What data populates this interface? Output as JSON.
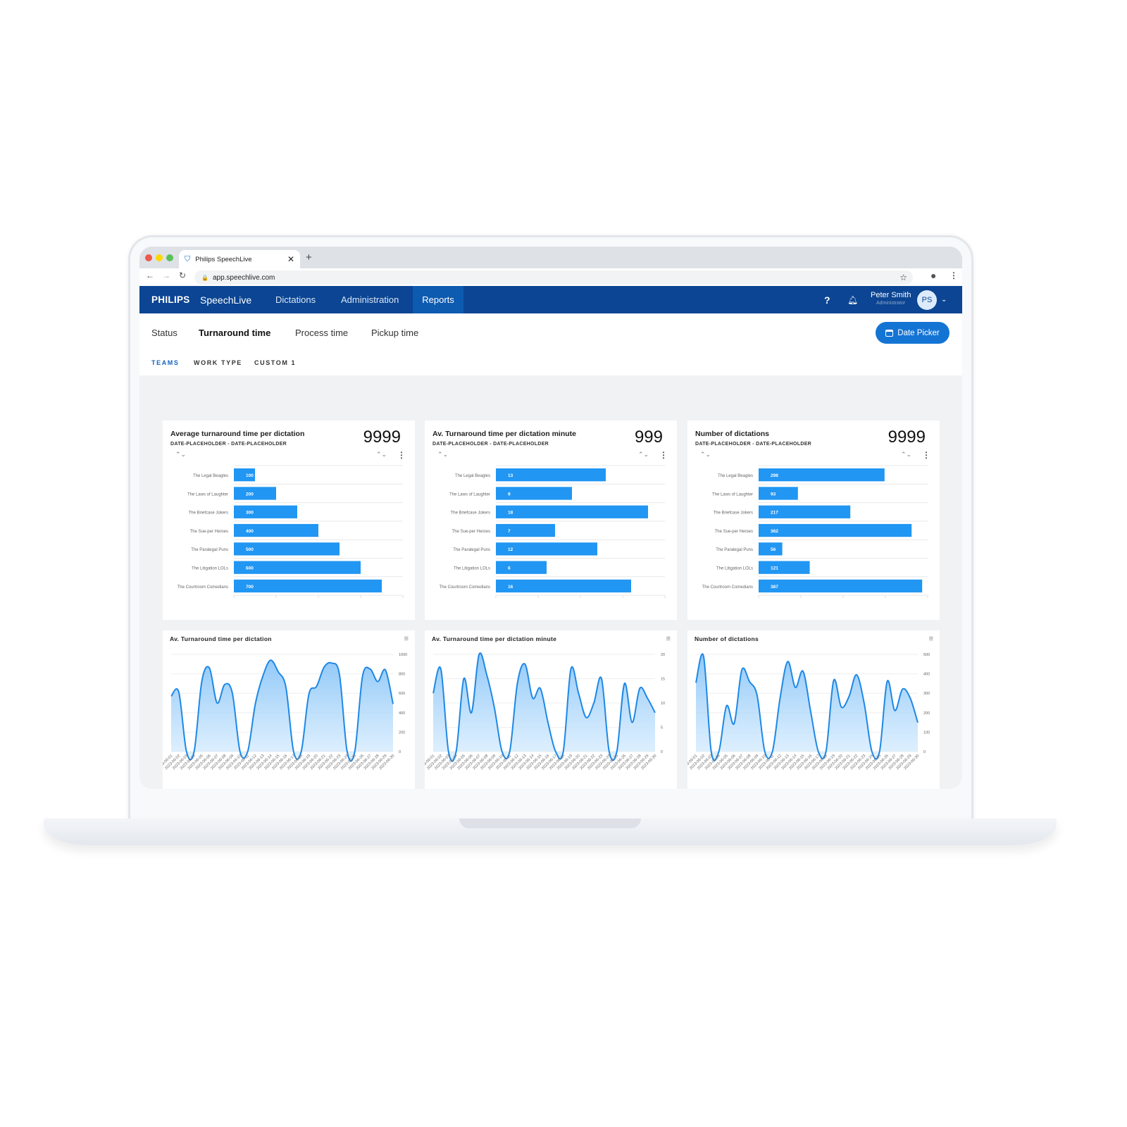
{
  "browser": {
    "tab_title": "Philips SpeechLive",
    "url": "app.speechlive.com"
  },
  "nav": {
    "brand": "PHILIPS",
    "product": "SpeechLive",
    "items": [
      {
        "label": "Dictations"
      },
      {
        "label": "Administration"
      },
      {
        "label": "Reports",
        "active": true
      }
    ],
    "user_name": "Peter Smith",
    "user_role": "Administrator",
    "avatar_initials": "PS",
    "color": "#0b4593"
  },
  "subtabs": [
    {
      "label": "Status"
    },
    {
      "label": "Turnaround time",
      "active": true
    },
    {
      "label": "Process time"
    },
    {
      "label": "Pickup time"
    }
  ],
  "date_picker_label": "Date Picker",
  "filters": [
    {
      "label": "TEAMS",
      "active": true
    },
    {
      "label": "WORK TYPE"
    },
    {
      "label": "CUSTOM 1"
    }
  ],
  "chart_data": [
    {
      "type": "bar",
      "orientation": "horizontal",
      "title": "Average turnaround time per dictation",
      "subtitle": "DATE-PLACEHOLDER - DATE-PLACEHOLDER",
      "total": "9999",
      "categories": [
        "The Legal Beagles",
        "The Laws of Laughter",
        "The Briefcase Jokers",
        "The Sue-per Heroes",
        "The Paralegal Puns",
        "The Litigation LOLs",
        "The Courtroom Comedians"
      ],
      "values": [
        100,
        200,
        300,
        400,
        500,
        600,
        700
      ],
      "xlim": [
        0,
        800
      ],
      "color": "#2196f3"
    },
    {
      "type": "bar",
      "orientation": "horizontal",
      "title": "Av. Turnaround time per dictation minute",
      "subtitle": "DATE-PLACEHOLDER - DATE-PLACEHOLDER",
      "total": "999",
      "categories": [
        "The Legal Beagles",
        "The Laws of Laughter",
        "The Briefcase Jokers",
        "The Sue-per Heroes",
        "The Paralegal Puns",
        "The Litigation LOLs",
        "The Courtroom Comedians"
      ],
      "values": [
        13,
        9,
        18,
        7,
        12,
        6,
        16
      ],
      "xlim": [
        0,
        20
      ],
      "color": "#2196f3"
    },
    {
      "type": "bar",
      "orientation": "horizontal",
      "title": "Number of dictations",
      "subtitle": "DATE-PLACEHOLDER - DATE-PLACEHOLDER",
      "total": "9999",
      "categories": [
        "The Legal Beagles",
        "The Laws of Laughter",
        "The Briefcase Jokers",
        "The Sue-per Heroes",
        "The Paralegal Puns",
        "The Litigation LOLs",
        "The Courtroom Comedians"
      ],
      "values": [
        298,
        93,
        217,
        362,
        56,
        121,
        387
      ],
      "xlim": [
        0,
        400
      ],
      "color": "#2196f3"
    },
    {
      "type": "area",
      "title": "Av. Turnaround time per dictation",
      "x": [
        "2023-06-01",
        "2023-06-02",
        "2023-06-03",
        "2023-06-04",
        "2023-06-05",
        "2023-06-06",
        "2023-06-07",
        "2023-06-08",
        "2023-06-09",
        "2023-06-10",
        "2023-06-11",
        "2023-06-12",
        "2023-06-13",
        "2023-06-14",
        "2023-06-15",
        "2023-06-16",
        "2023-06-17",
        "2023-06-18",
        "2023-06-19",
        "2023-06-20",
        "2023-06-21",
        "2023-06-22",
        "2023-06-23",
        "2023-06-24",
        "2023-06-25",
        "2023-06-26",
        "2023-06-27",
        "2023-06-28",
        "2023-06-29",
        "2023-06-30"
      ],
      "values": [
        570,
        610,
        0,
        0,
        720,
        860,
        500,
        690,
        600,
        0,
        0,
        490,
        780,
        940,
        820,
        660,
        0,
        0,
        590,
        670,
        870,
        910,
        790,
        0,
        0,
        770,
        850,
        720,
        840,
        490
      ],
      "ylim": [
        0,
        1000
      ],
      "yticks": [
        0,
        200,
        400,
        600,
        800,
        1000
      ],
      "color": "#1e88e5"
    },
    {
      "type": "area",
      "title": "Av. Turnaround time per dictation minute",
      "x": [
        "2023-06-01",
        "2023-06-02",
        "2023-06-03",
        "2023-06-04",
        "2023-06-05",
        "2023-06-06",
        "2023-06-07",
        "2023-06-08",
        "2023-06-09",
        "2023-06-10",
        "2023-06-11",
        "2023-06-12",
        "2023-06-13",
        "2023-06-14",
        "2023-06-15",
        "2023-06-16",
        "2023-06-17",
        "2023-06-18",
        "2023-06-19",
        "2023-06-20",
        "2023-06-21",
        "2023-06-22",
        "2023-06-23",
        "2023-06-24",
        "2023-06-25",
        "2023-06-26",
        "2023-06-27",
        "2023-06-28",
        "2023-06-29",
        "2023-06-30"
      ],
      "values": [
        12,
        17,
        0,
        0,
        15,
        8,
        20,
        15.8,
        9,
        0,
        0,
        14,
        18,
        11,
        13,
        6,
        0,
        0,
        17,
        12,
        7,
        10,
        15,
        0,
        0,
        14,
        6,
        13,
        11,
        8
      ],
      "ylim": [
        0,
        20
      ],
      "yticks": [
        0,
        5,
        10,
        15,
        20
      ],
      "color": "#1e88e5"
    },
    {
      "type": "area",
      "title": "Number of dictations",
      "x": [
        "2023-06-01",
        "2023-06-02",
        "2023-06-03",
        "2023-06-04",
        "2023-06-05",
        "2023-06-06",
        "2023-06-07",
        "2023-06-08",
        "2023-06-09",
        "2023-06-10",
        "2023-06-11",
        "2023-06-12",
        "2023-06-13",
        "2023-06-14",
        "2023-06-15",
        "2023-06-16",
        "2023-06-17",
        "2023-06-18",
        "2023-06-19",
        "2023-06-20",
        "2023-06-21",
        "2023-06-22",
        "2023-06-23",
        "2023-06-24",
        "2023-06-25",
        "2023-06-26",
        "2023-06-27",
        "2023-06-28",
        "2023-06-29",
        "2023-06-30"
      ],
      "values": [
        354,
        490,
        0,
        0,
        235,
        145,
        420,
        360,
        288,
        0,
        0,
        275,
        463,
        330,
        413,
        205,
        0,
        0,
        365,
        229,
        282,
        395,
        246,
        0,
        0,
        361,
        211,
        321,
        276,
        149
      ],
      "ylim": [
        0,
        500
      ],
      "yticks": [
        0,
        100,
        200,
        300,
        400,
        500
      ],
      "color": "#1e88e5"
    }
  ]
}
